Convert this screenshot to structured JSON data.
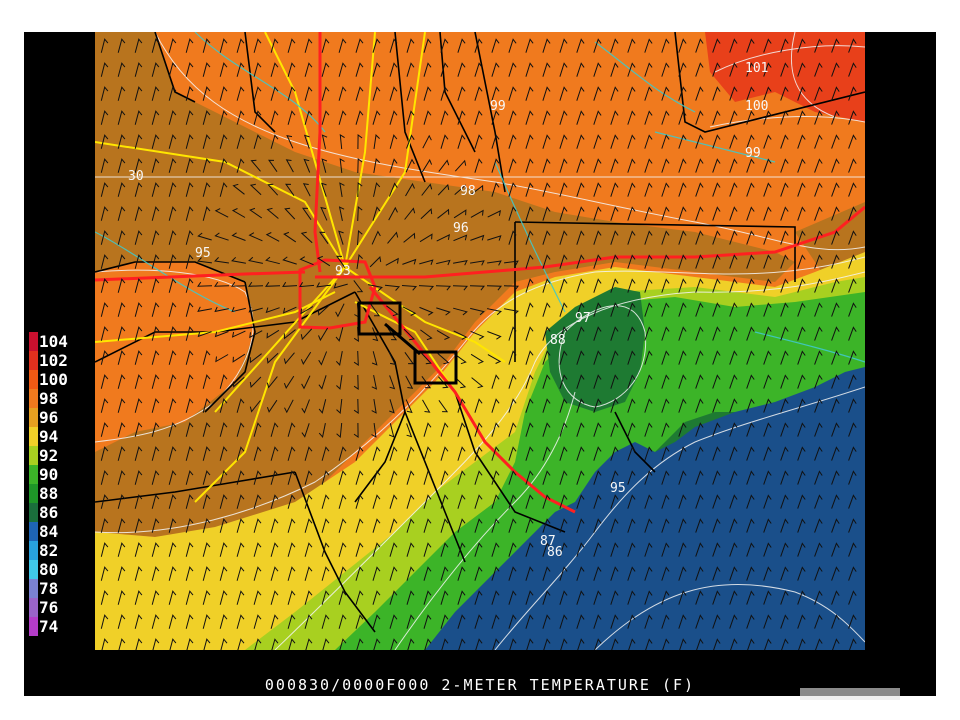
{
  "caption": "000830/0000F000 2-METER TEMPERATURE (F)",
  "legend": {
    "entries": [
      {
        "label": "104",
        "color": "#c8102e"
      },
      {
        "label": "102",
        "color": "#e0301e"
      },
      {
        "label": "100",
        "color": "#f05a14"
      },
      {
        "label": "98",
        "color": "#f07a1e"
      },
      {
        "label": "96",
        "color": "#e6a020"
      },
      {
        "label": "94",
        "color": "#f0d028"
      },
      {
        "label": "92",
        "color": "#a8d020"
      },
      {
        "label": "90",
        "color": "#3cb428"
      },
      {
        "label": "88",
        "color": "#1e9628"
      },
      {
        "label": "86",
        "color": "#1a6e3c"
      },
      {
        "label": "84",
        "color": "#1e64b4"
      },
      {
        "label": "82",
        "color": "#28a0dc"
      },
      {
        "label": "80",
        "color": "#40c8e8"
      },
      {
        "label": "78",
        "color": "#7a82d2"
      },
      {
        "label": "76",
        "color": "#9a64c8"
      },
      {
        "label": "74",
        "color": "#b43cc8"
      }
    ]
  },
  "contour_labels": [
    "101",
    "100",
    "99",
    "99",
    "98",
    "96",
    "95",
    "93",
    "97",
    "88",
    "95",
    "86",
    "87",
    "30"
  ],
  "zones": {
    "hot": "#f07a1e",
    "hotter": "#e8401a",
    "brown": "#b8741e",
    "yellow": "#f0d028",
    "lime": "#a8d020",
    "green": "#3cb428",
    "dkgreen": "#1e7a32",
    "gulf": "#1a4f8a"
  }
}
